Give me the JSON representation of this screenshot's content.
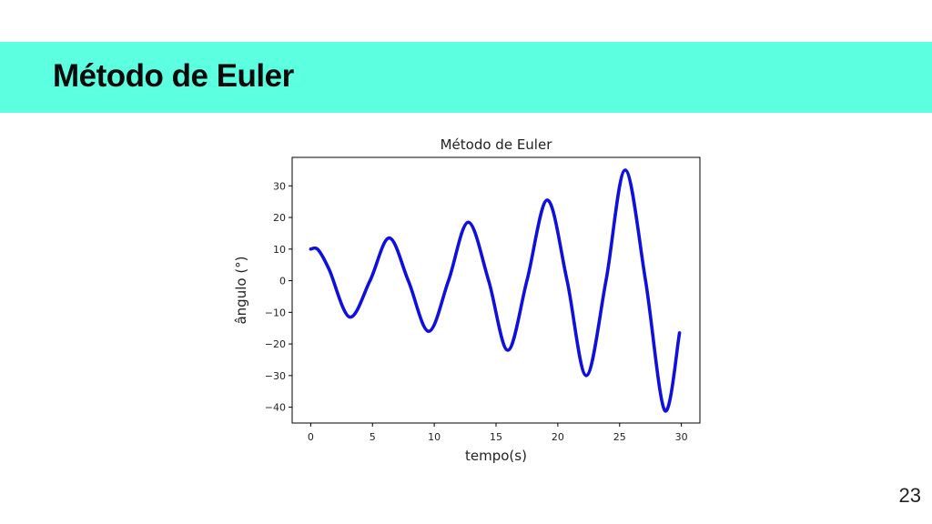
{
  "slide": {
    "title": "Método de Euler",
    "page_number": "23",
    "header_color": "#5cffe0"
  },
  "chart_data": {
    "type": "line",
    "title": "Método de Euler",
    "xlabel": "tempo(s)",
    "ylabel": "ângulo (°)",
    "xlim": [
      -1.5,
      31.5
    ],
    "ylim": [
      -45,
      39
    ],
    "xticks": [
      0,
      5,
      10,
      15,
      20,
      25,
      30
    ],
    "yticks": [
      30,
      20,
      10,
      0,
      -10,
      -20,
      -30,
      -40
    ],
    "grid": false,
    "series": [
      {
        "color": "#1010dd",
        "x": [
          0,
          0.6,
          1.5,
          3.15,
          4.8,
          6.35,
          7.9,
          9.55,
          11.15,
          12.75,
          14.4,
          15.95,
          17.5,
          19.15,
          20.75,
          22.3,
          23.9,
          25.45,
          27.1,
          28.65,
          29.85
        ],
        "y": [
          10,
          9.8,
          3.5,
          -11.5,
          0,
          13.5,
          0,
          -16,
          0,
          18.5,
          0,
          -22,
          0,
          25.5,
          0,
          -30,
          0,
          35,
          0,
          -41,
          -16.5
        ]
      }
    ]
  }
}
